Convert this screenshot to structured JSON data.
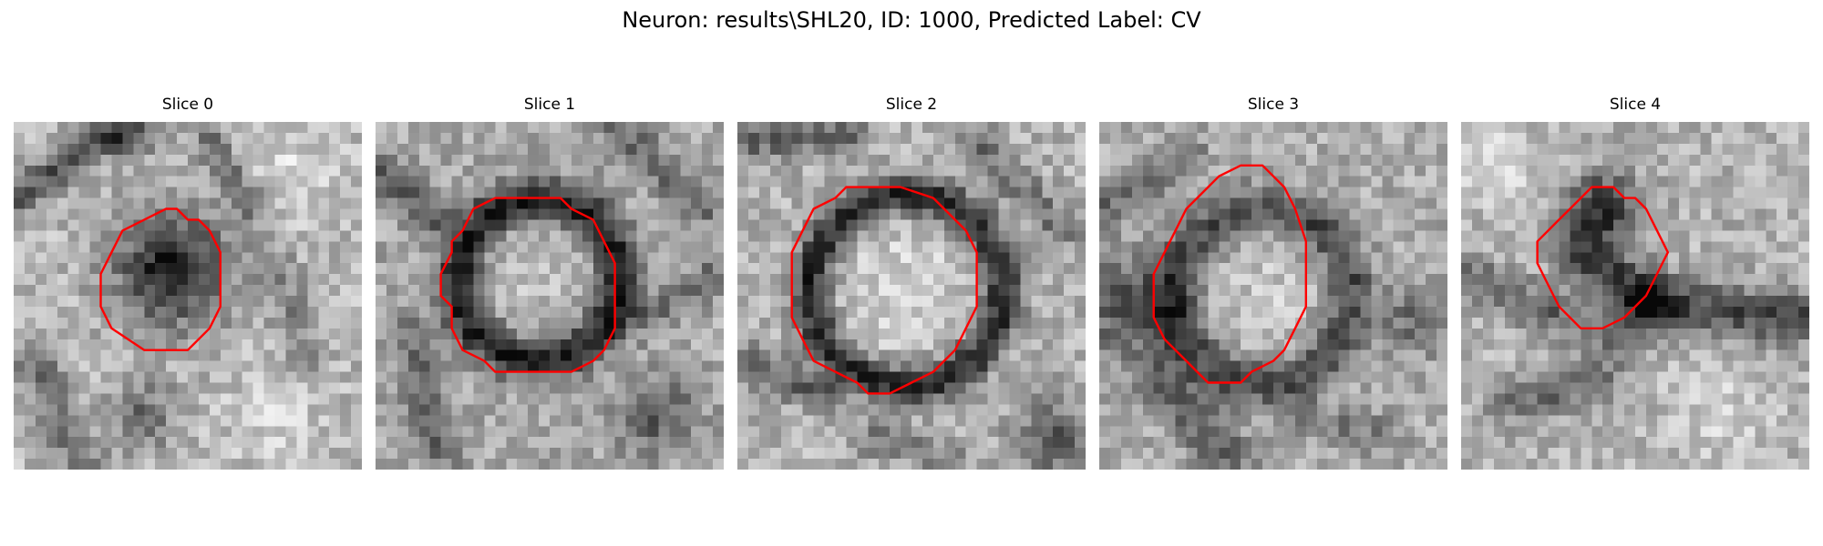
{
  "figure": {
    "title": "Neuron: results\\SHL20, ID: 1000, Predicted Label: CV",
    "contour_color": "#ff0000"
  },
  "slices": [
    {
      "title": "Slice 0",
      "structure": "dark blob enclosed by red contour"
    },
    {
      "title": "Slice 1",
      "structure": "dark ring with bright center enclosed by red contour"
    },
    {
      "title": "Slice 2",
      "structure": "dark ring with bright center enclosed by red contour"
    },
    {
      "title": "Slice 3",
      "structure": "gray ring with bright center enclosed by red contour"
    },
    {
      "title": "Slice 4",
      "structure": "dark tubular structures partially enclosed by red contour"
    }
  ]
}
